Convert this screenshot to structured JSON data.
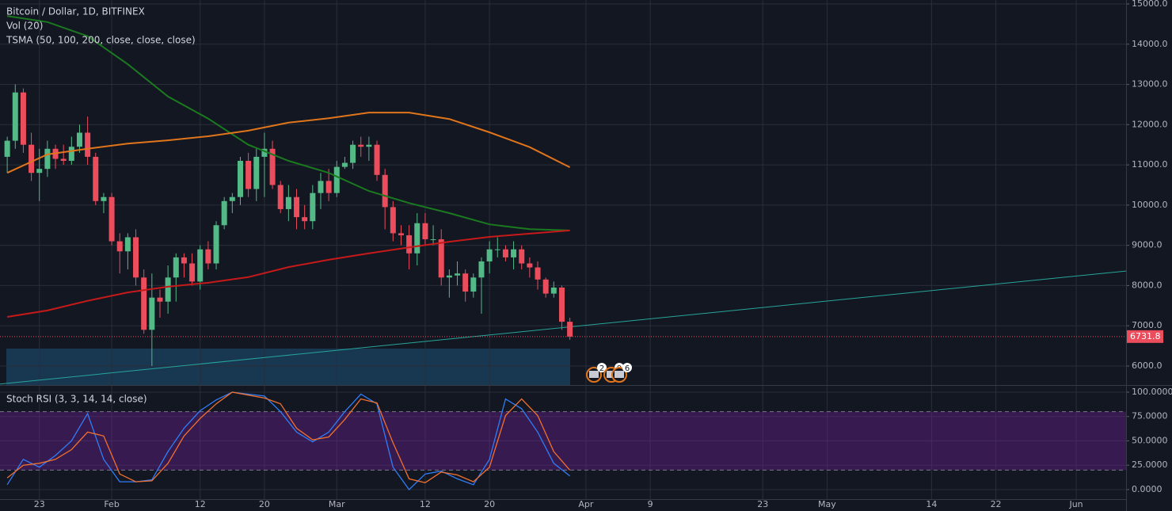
{
  "chart_data": [
    {
      "type": "candlestick",
      "title": "Bitcoin / Dollar, 1D, BITFINEX",
      "indicators": [
        "Vol (20)",
        "TSMA (50, 100, 200, close, close, close)"
      ],
      "x": [
        0,
        1,
        2,
        3,
        4,
        5,
        6,
        7,
        8,
        9,
        10,
        11,
        12,
        13,
        14,
        15,
        16,
        17,
        18,
        19,
        20,
        21,
        22,
        23,
        24,
        25,
        26,
        27,
        28,
        29,
        30,
        31,
        32,
        33,
        34,
        35,
        36,
        37,
        38,
        39,
        40,
        41,
        42,
        43,
        44,
        45,
        46,
        47,
        48,
        49,
        50,
        51,
        52,
        53,
        54,
        55,
        56,
        57,
        58,
        59,
        60,
        61,
        62,
        63,
        64,
        65,
        66,
        67,
        68,
        69,
        70
      ],
      "open": [
        11200,
        11600,
        12800,
        11500,
        10800,
        10900,
        11400,
        11150,
        11100,
        11450,
        11800,
        11200,
        10100,
        10200,
        9100,
        8850,
        9200,
        8200,
        6900,
        7700,
        7600,
        8200,
        8700,
        8550,
        8100,
        8900,
        8550,
        9500,
        10100,
        10200,
        11100,
        10400,
        11200,
        11400,
        10500,
        9900,
        10200,
        9700,
        9600,
        10300,
        10600,
        10300,
        10950,
        11050,
        11500,
        11450,
        11500,
        10750,
        9950,
        9300,
        9250,
        8800,
        9550,
        9150,
        9150,
        8200,
        8250,
        8300,
        7850,
        8200,
        8600,
        8900,
        8900,
        8700,
        8900,
        8550,
        8450,
        8150,
        7800,
        7950,
        7100
      ],
      "high": [
        11700,
        13000,
        12900,
        11800,
        11400,
        11600,
        11500,
        11500,
        11700,
        12000,
        12200,
        11300,
        10300,
        10300,
        9300,
        9300,
        9400,
        8400,
        8300,
        7900,
        8500,
        8800,
        8800,
        8800,
        9000,
        9100,
        9600,
        10200,
        10300,
        11200,
        11300,
        11400,
        11800,
        11600,
        10600,
        10500,
        10400,
        10000,
        10500,
        10800,
        10900,
        11100,
        11200,
        11600,
        11700,
        11700,
        11600,
        10900,
        10100,
        9500,
        9500,
        9800,
        9800,
        9500,
        9400,
        8400,
        8600,
        8400,
        8300,
        8700,
        9100,
        9200,
        9000,
        9100,
        9000,
        8700,
        8600,
        8200,
        8100,
        8000,
        7200
      ],
      "low": [
        10800,
        11400,
        11300,
        10600,
        10100,
        10700,
        10900,
        11000,
        11000,
        11300,
        11000,
        10000,
        9800,
        9000,
        8300,
        8400,
        8000,
        6800,
        6000,
        7200,
        7300,
        7600,
        8200,
        8000,
        7900,
        8400,
        8400,
        9400,
        9800,
        10000,
        10200,
        10100,
        10200,
        10400,
        9800,
        9600,
        9400,
        9400,
        9400,
        9900,
        10100,
        10200,
        10900,
        10900,
        11200,
        11100,
        10600,
        9400,
        9100,
        9000,
        8400,
        8500,
        9000,
        9000,
        8000,
        7700,
        8000,
        7600,
        7700,
        7300,
        8300,
        8700,
        8600,
        8400,
        8400,
        8200,
        7900,
        7700,
        7700,
        6900,
        6650
      ],
      "close": [
        11600,
        12800,
        11500,
        10800,
        10900,
        11400,
        11150,
        11100,
        11450,
        11800,
        11200,
        10100,
        10200,
        9100,
        8850,
        9200,
        8200,
        6900,
        7700,
        7600,
        8200,
        8700,
        8550,
        8100,
        8900,
        8550,
        9500,
        10100,
        10200,
        11100,
        10400,
        11200,
        11400,
        10500,
        9900,
        10200,
        9700,
        9600,
        10300,
        10600,
        10300,
        10950,
        11050,
        11500,
        11450,
        11500,
        10750,
        9950,
        9300,
        9250,
        8800,
        9550,
        9150,
        9150,
        8200,
        8250,
        8300,
        7850,
        8200,
        8600,
        8900,
        8900,
        8700,
        8900,
        8550,
        8450,
        8150,
        7800,
        7950,
        7100,
        6731.8
      ],
      "up_color": "#53b987",
      "down_color": "#eb4d5c",
      "series": [
        {
          "color": "#1b7a1f",
          "x": [
            0,
            5,
            10,
            15,
            20,
            25,
            30,
            35,
            40,
            45,
            50,
            55,
            60,
            65,
            70
          ],
          "values": [
            14700,
            14550,
            14200,
            13500,
            12700,
            12150,
            11500,
            11100,
            10800,
            10350,
            10050,
            9800,
            9520,
            9400,
            9370
          ]
        },
        {
          "color": "#e0751b",
          "x": [
            0,
            5,
            10,
            15,
            20,
            25,
            30,
            35,
            40,
            45,
            50,
            55,
            60,
            65,
            70
          ],
          "values": [
            10800,
            11260,
            11400,
            11530,
            11610,
            11710,
            11850,
            12050,
            12160,
            12300,
            12300,
            12140,
            11810,
            11440,
            10940
          ]
        },
        {
          "color": "#c61a1a",
          "x": [
            0,
            5,
            10,
            15,
            20,
            25,
            30,
            35,
            40,
            45,
            50,
            55,
            60,
            65,
            70
          ],
          "values": [
            7220,
            7380,
            7620,
            7830,
            7970,
            8070,
            8210,
            8460,
            8640,
            8800,
            8950,
            9090,
            9210,
            9290,
            9370
          ]
        }
      ],
      "trendline": {
        "color": "#26a69a",
        "x": [
          -0.9,
          139.2
        ],
        "values": [
          5550,
          8360
        ]
      },
      "last_price": 6731.8,
      "events": [
        "2",
        "9",
        "6"
      ],
      "xlim": [
        -0.9,
        139.2
      ],
      "ylim": [
        5527,
        15098
      ],
      "yticks": [
        {
          "value": 6000,
          "label": "6000.0"
        },
        {
          "value": 7000,
          "label": "7000.0"
        },
        {
          "value": 8000,
          "label": "8000.0"
        },
        {
          "value": 9000,
          "label": "9000.0"
        },
        {
          "value": 10000,
          "label": "10000.0"
        },
        {
          "value": 11000,
          "label": "11000.0"
        },
        {
          "value": 12000,
          "label": "12000.0"
        },
        {
          "value": 13000,
          "label": "13000.0"
        },
        {
          "value": 14000,
          "label": "14000.0"
        },
        {
          "value": 15000,
          "label": "15000.0"
        }
      ],
      "grid": true
    },
    {
      "type": "line",
      "title": "Stoch RSI (3, 3, 14, 14, close)",
      "x": [
        0,
        2,
        4,
        6,
        8,
        10,
        12,
        14,
        16,
        18,
        20,
        22,
        24,
        26,
        28,
        30,
        32,
        34,
        36,
        38,
        40,
        42,
        44,
        46,
        48,
        50,
        52,
        54,
        56,
        58,
        60,
        62,
        64,
        66,
        68,
        70
      ],
      "series": [
        {
          "color": "#2f7df6",
          "values": [
            5,
            31,
            23,
            35,
            50,
            78,
            31,
            8,
            8,
            10,
            39,
            63,
            81,
            92,
            100,
            98,
            96,
            80,
            59,
            49,
            59,
            80,
            98,
            88,
            23,
            0,
            16,
            19,
            11,
            5,
            31,
            93,
            83,
            59,
            27,
            14
          ]
        },
        {
          "color": "#f0702e",
          "values": [
            12,
            25,
            27,
            31,
            41,
            59,
            55,
            16,
            8,
            9,
            27,
            55,
            73,
            88,
            100,
            97,
            94,
            88,
            63,
            51,
            54,
            72,
            93,
            89,
            48,
            11,
            7,
            18,
            15,
            8,
            23,
            76,
            93,
            76,
            39,
            20
          ]
        }
      ],
      "band": [
        20,
        80
      ],
      "band_color": "#7b1fa2",
      "xlim": [
        -0.9,
        139.2
      ],
      "ylim": [
        -9.8,
        106.5
      ],
      "yticks": [
        {
          "value": 0,
          "label": "0.0000"
        },
        {
          "value": 25,
          "label": "25.0000"
        },
        {
          "value": 50,
          "label": "50.0000"
        },
        {
          "value": 75,
          "label": "75.0000"
        },
        {
          "value": 100,
          "label": "100.0000"
        }
      ],
      "xticks": [
        {
          "value": 4,
          "label": "23"
        },
        {
          "value": 13,
          "label": "Feb"
        },
        {
          "value": 24,
          "label": "12"
        },
        {
          "value": 32,
          "label": "20"
        },
        {
          "value": 41,
          "label": "Mar"
        },
        {
          "value": 52,
          "label": "12"
        },
        {
          "value": 60,
          "label": "20"
        },
        {
          "value": 72,
          "label": "Apr"
        },
        {
          "value": 80,
          "label": "9"
        },
        {
          "value": 94,
          "label": "23"
        },
        {
          "value": 102,
          "label": "May"
        },
        {
          "value": 115,
          "label": "14"
        },
        {
          "value": 123,
          "label": "22"
        },
        {
          "value": 133,
          "label": "Jun"
        }
      ],
      "grid": true
    }
  ]
}
